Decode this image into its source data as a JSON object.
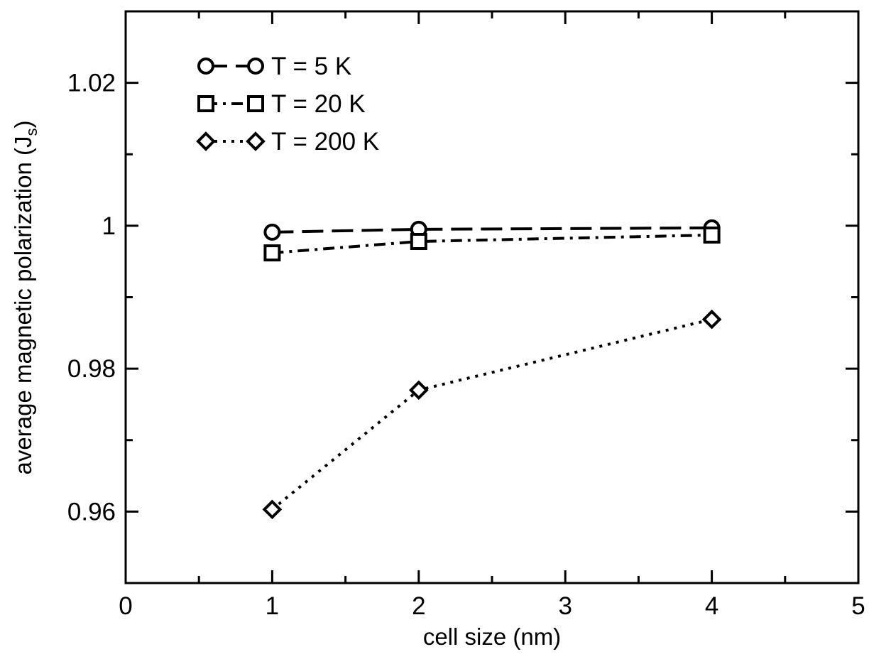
{
  "chart_data": {
    "type": "line",
    "title": "",
    "xlabel": "cell size (nm)",
    "ylabel": {
      "main": "average magnetic polarization (J",
      "sub": "s",
      "close": ")"
    },
    "xlim": [
      0,
      5
    ],
    "ylim": [
      0.95,
      1.03
    ],
    "x_ticks": [
      0,
      1,
      2,
      3,
      4,
      5
    ],
    "x_tick_labels": [
      "0",
      "1",
      "2",
      "3",
      "4",
      "5"
    ],
    "y_ticks": [
      0.96,
      0.98,
      1.0,
      1.02
    ],
    "y_tick_labels": [
      "0.96",
      "0.98",
      "1",
      "1.02"
    ],
    "grid": false,
    "legend_position": "top-left",
    "series": [
      {
        "name": "T = 5 K",
        "marker": "circle",
        "line_style": "dashed",
        "x": [
          1,
          2,
          4
        ],
        "y": [
          0.9991,
          0.9995,
          0.9997
        ]
      },
      {
        "name": "T = 20 K",
        "marker": "square",
        "line_style": "dash-dot",
        "x": [
          1,
          2,
          4
        ],
        "y": [
          0.9962,
          0.9978,
          0.9987
        ]
      },
      {
        "name": "T = 200 K",
        "marker": "diamond",
        "line_style": "dotted",
        "x": [
          1,
          2,
          4
        ],
        "y": [
          0.9603,
          0.977,
          0.9869
        ]
      }
    ]
  }
}
